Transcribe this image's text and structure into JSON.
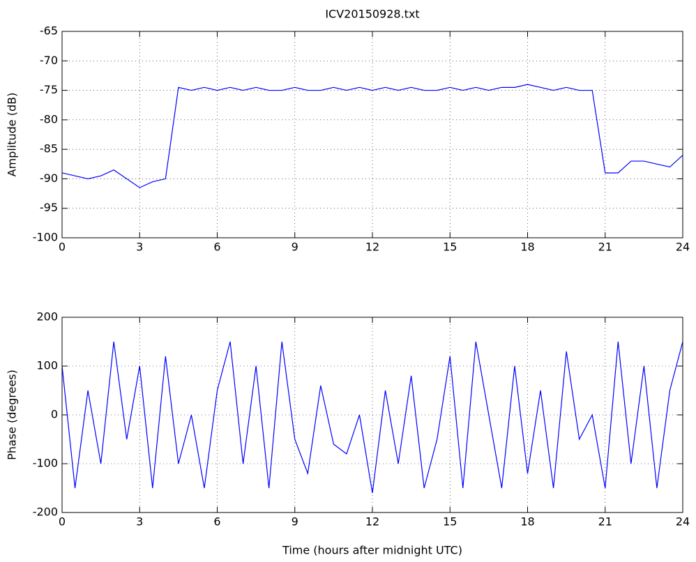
{
  "chart_data": [
    {
      "type": "line",
      "title": "ICV20150928.txt",
      "y_label": "Amplitude (dB)",
      "x": [
        0,
        0.5,
        1,
        1.5,
        2,
        2.5,
        3,
        3.5,
        4,
        4.5,
        5,
        5.5,
        6,
        6.5,
        7,
        7.5,
        8,
        8.5,
        9,
        9.5,
        10,
        10.5,
        11,
        11.5,
        12,
        12.5,
        13,
        13.5,
        14,
        14.5,
        15,
        15.5,
        16,
        16.5,
        17,
        17.5,
        18,
        18.5,
        19,
        19.5,
        20,
        20.5,
        21,
        21.5,
        22,
        22.5,
        23,
        23.5,
        24
      ],
      "series": [
        {
          "color": "#0000ff",
          "values": [
            -89,
            -89.5,
            -90,
            -89.5,
            -88.5,
            -90,
            -91.5,
            -90.5,
            -90,
            -74.5,
            -75,
            -74.5,
            -75,
            -74.5,
            -75,
            -74.5,
            -75,
            -75,
            -74.5,
            -75,
            -75,
            -74.5,
            -75,
            -74.5,
            -75,
            -74.5,
            -75,
            -74.5,
            -75,
            -75,
            -74.5,
            -75,
            -74.5,
            -75,
            -74.5,
            -74.5,
            -74,
            -74.5,
            -75,
            -74.5,
            -75,
            -75,
            -89,
            -89,
            -87,
            -87,
            -87.5,
            -88,
            -86
          ]
        }
      ],
      "xlim": [
        0,
        24
      ],
      "xticks": [
        0,
        3,
        6,
        9,
        12,
        15,
        18,
        21,
        24
      ],
      "ylim": [
        -100,
        -65
      ],
      "yticks": [
        -65,
        -70,
        -75,
        -80,
        -85,
        -90,
        -95,
        -100
      ],
      "grid": true
    },
    {
      "type": "line",
      "y_label": "Phase (degrees)",
      "x_label": "Time (hours after midnight UTC)",
      "x": [
        0,
        0.5,
        1,
        1.5,
        2,
        2.5,
        3,
        3.5,
        4,
        4.5,
        5,
        5.5,
        6,
        6.5,
        7,
        7.5,
        8,
        8.5,
        9,
        9.5,
        10,
        10.5,
        11,
        11.5,
        12,
        12.5,
        13,
        13.5,
        14,
        14.5,
        15,
        15.5,
        16,
        16.5,
        17,
        17.5,
        18,
        18.5,
        19,
        19.5,
        20,
        20.5,
        21,
        21.5,
        22,
        22.5,
        23,
        23.5,
        24
      ],
      "series": [
        {
          "color": "#0000ff",
          "values": [
            100,
            -150,
            50,
            -100,
            150,
            -50,
            100,
            -150,
            120,
            -100,
            0,
            -150,
            50,
            150,
            -100,
            100,
            -150,
            150,
            -50,
            -120,
            60,
            -60,
            -80,
            0,
            -160,
            50,
            -100,
            80,
            -150,
            -50,
            120,
            -150,
            150,
            0,
            -150,
            100,
            -120,
            50,
            -150,
            130,
            -50,
            0,
            -150,
            150,
            -100,
            100,
            -150,
            50,
            150
          ]
        }
      ],
      "xlim": [
        0,
        24
      ],
      "xticks": [
        0,
        3,
        6,
        9,
        12,
        15,
        18,
        21,
        24
      ],
      "ylim": [
        -200,
        200
      ],
      "yticks": [
        200,
        100,
        0,
        -100,
        -200
      ],
      "grid": true
    }
  ]
}
